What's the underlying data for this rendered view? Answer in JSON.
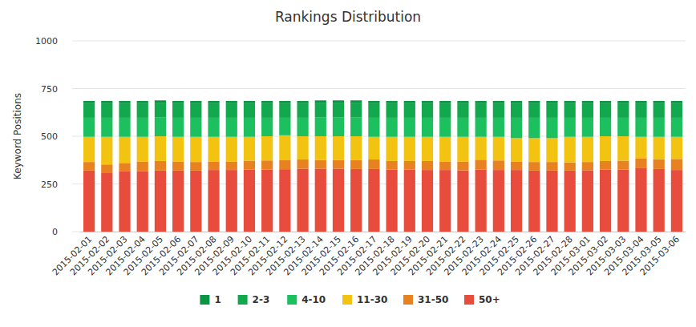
{
  "chart_data": {
    "type": "bar",
    "title": "Rankings Distribution",
    "y_label": "Keyword Positions",
    "stacked": true,
    "grid": true,
    "legend": "bottom",
    "categories": [
      "2015-02-01",
      "2015-02-02",
      "2015-02-03",
      "2015-02-04",
      "2015-02-05",
      "2015-02-06",
      "2015-02-07",
      "2015-02-08",
      "2015-02-09",
      "2015-02-10",
      "2015-02-11",
      "2015-02-12",
      "2015-02-13",
      "2015-02-14",
      "2015-02-15",
      "2015-02-16",
      "2015-02-17",
      "2015-02-18",
      "2015-02-19",
      "2015-02-20",
      "2015-02-21",
      "2015-02-22",
      "2015-02-23",
      "2015-02-24",
      "2015-02-25",
      "2015-02-26",
      "2015-02-27",
      "2015-02-28",
      "2015-03-01",
      "2015-03-02",
      "2015-03-03",
      "2015-03-04",
      "2015-03-05",
      "2015-03-06"
    ],
    "ylim": [
      0,
      1000
    ],
    "yticks": [
      0,
      250,
      500,
      750,
      1000
    ],
    "series": [
      {
        "name": "1",
        "color": "#0b9444",
        "values": [
          12,
          12,
          12,
          12,
          12,
          12,
          12,
          12,
          12,
          12,
          12,
          12,
          12,
          12,
          12,
          12,
          12,
          12,
          12,
          12,
          12,
          12,
          12,
          12,
          12,
          12,
          12,
          12,
          12,
          12,
          12,
          12,
          12,
          12
        ]
      },
      {
        "name": "2-3",
        "color": "#12a84e",
        "values": [
          76,
          76,
          76,
          76,
          76,
          76,
          76,
          76,
          76,
          76,
          76,
          76,
          76,
          76,
          76,
          76,
          76,
          76,
          76,
          76,
          76,
          76,
          76,
          76,
          76,
          76,
          76,
          76,
          76,
          76,
          76,
          76,
          76,
          76
        ]
      },
      {
        "name": "4-10",
        "color": "#1cc05e",
        "values": [
          100,
          100,
          100,
          100,
          100,
          100,
          100,
          100,
          100,
          100,
          97,
          92,
          97,
          100,
          100,
          100,
          100,
          100,
          100,
          100,
          100,
          100,
          100,
          100,
          107,
          107,
          107,
          100,
          100,
          97,
          97,
          100,
          100,
          100
        ]
      },
      {
        "name": "11-30",
        "color": "#f2c311",
        "values": [
          132,
          145,
          137,
          131,
          130,
          129,
          132,
          129,
          129,
          125,
          127,
          131,
          122,
          125,
          125,
          124,
          119,
          127,
          127,
          127,
          129,
          131,
          120,
          124,
          122,
          125,
          125,
          134,
          132,
          130,
          128,
          112,
          117,
          116
        ]
      },
      {
        "name": "31-50",
        "color": "#e8811f",
        "values": [
          45,
          42,
          42,
          50,
          50,
          48,
          45,
          45,
          45,
          47,
          48,
          47,
          48,
          45,
          45,
          48,
          50,
          45,
          45,
          47,
          45,
          45,
          52,
          50,
          45,
          45,
          45,
          43,
          43,
          45,
          47,
          50,
          52,
          58
        ]
      },
      {
        "name": "50+",
        "color": "#e84c3d",
        "values": [
          320,
          310,
          318,
          316,
          320,
          320,
          320,
          323,
          323,
          325,
          325,
          327,
          330,
          330,
          330,
          328,
          328,
          325,
          325,
          323,
          323,
          321,
          325,
          323,
          323,
          320,
          320,
          320,
          322,
          325,
          325,
          335,
          328,
          323
        ]
      }
    ]
  }
}
